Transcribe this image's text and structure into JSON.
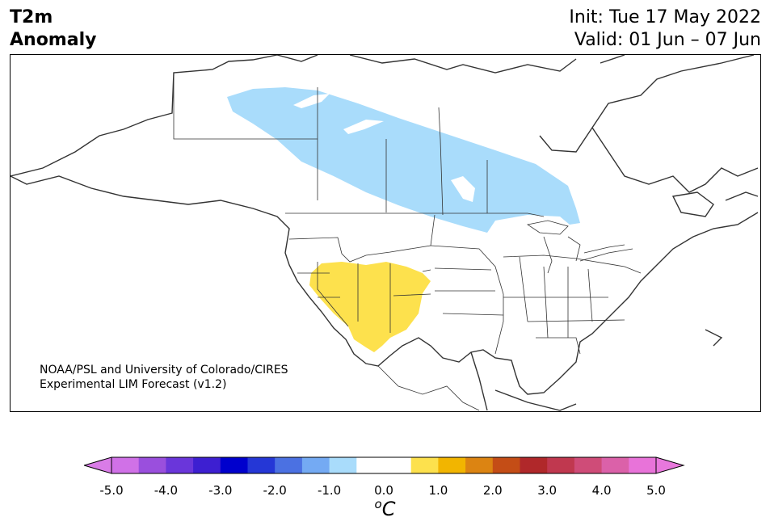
{
  "header": {
    "title_line1": "T2m",
    "title_line2": "Anomaly",
    "init": "Init: Tue 17 May 2022",
    "valid": "Valid: 01 Jun – 07 Jun"
  },
  "map": {
    "region": "North America",
    "credit_line1": "NOAA/PSL and University of Colorado/CIRES",
    "credit_line2": "Experimental LIM Forecast (v1.2)",
    "anomalies": [
      {
        "area": "western-central Canada",
        "range": "-1.0 to -0.5",
        "color": "#a9dcfb"
      },
      {
        "area": "US Southwest",
        "range": "0.5 to 1.0",
        "color": "#fde14d"
      }
    ]
  },
  "colorbar": {
    "ticks": [
      "-5.0",
      "-4.0",
      "-3.0",
      "-2.0",
      "-1.0",
      "0.0",
      "1.0",
      "2.0",
      "3.0",
      "4.0",
      "5.0"
    ],
    "colors": [
      "#d071e7",
      "#9a4fdd",
      "#6a36da",
      "#3d1fd1",
      "#0000cd",
      "#2537d6",
      "#4b71e2",
      "#74aaf3",
      "#a9dcfb",
      "#ffffff",
      "#ffffff",
      "#fde14d",
      "#f2b500",
      "#dc8412",
      "#c44d16",
      "#b0282a",
      "#c0384f",
      "#cf4c78",
      "#db61a9",
      "#e873d9"
    ],
    "under_color": "#d97ce7",
    "over_color": "#e878dc",
    "unit_base": "C",
    "unit_sup": "o"
  }
}
